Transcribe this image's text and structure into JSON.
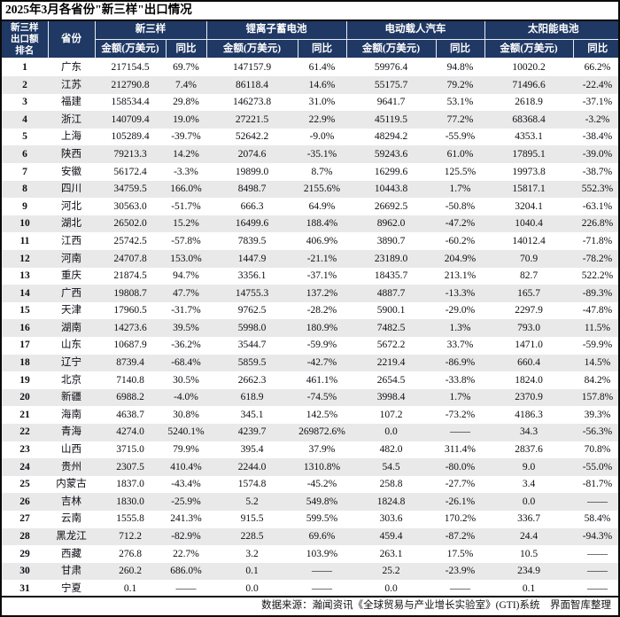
{
  "title": "2025年3月各省份\"新三样\"出口情况",
  "colors": {
    "header_bg": "#1f3864",
    "header_text": "#ffffff",
    "row_stripe": "#e9e9e9",
    "border": "#000000"
  },
  "chart_data": {
    "type": "table",
    "title": "2025年3月各省份\"新三样\"出口情况",
    "rank_header": "新三样\n出口额\n排名",
    "province_header": "省份",
    "column_groups": [
      "新三样",
      "锂离子蓄电池",
      "电动载人汽车",
      "太阳能电池"
    ],
    "amount_header": "金额(万美元)",
    "yoy_header": "同比",
    "columns": [
      "新三样出口额排名",
      "省份",
      "新三样金额(万美元)",
      "新三样同比",
      "锂离子蓄电池金额(万美元)",
      "锂离子蓄电池同比",
      "电动载人汽车金额(万美元)",
      "电动载人汽车同比",
      "太阳能电池金额(万美元)",
      "太阳能电池同比"
    ],
    "rows": [
      [
        "1",
        "广东",
        "217154.5",
        "69.7%",
        "147157.9",
        "61.4%",
        "59976.4",
        "94.8%",
        "10020.2",
        "66.2%"
      ],
      [
        "2",
        "江苏",
        "212790.8",
        "7.4%",
        "86118.4",
        "14.6%",
        "55175.7",
        "79.2%",
        "71496.6",
        "-22.4%"
      ],
      [
        "3",
        "福建",
        "158534.4",
        "29.8%",
        "146273.8",
        "31.0%",
        "9641.7",
        "53.1%",
        "2618.9",
        "-37.1%"
      ],
      [
        "4",
        "浙江",
        "140709.4",
        "19.0%",
        "27221.5",
        "22.9%",
        "45119.5",
        "77.2%",
        "68368.4",
        "-3.2%"
      ],
      [
        "5",
        "上海",
        "105289.4",
        "-39.7%",
        "52642.2",
        "-9.0%",
        "48294.2",
        "-55.9%",
        "4353.1",
        "-38.4%"
      ],
      [
        "6",
        "陕西",
        "79213.3",
        "14.2%",
        "2074.6",
        "-35.1%",
        "59243.6",
        "61.0%",
        "17895.1",
        "-39.0%"
      ],
      [
        "7",
        "安徽",
        "56172.4",
        "-3.3%",
        "19899.0",
        "8.7%",
        "16299.6",
        "125.5%",
        "19973.8",
        "-38.7%"
      ],
      [
        "8",
        "四川",
        "34759.5",
        "166.0%",
        "8498.7",
        "2155.6%",
        "10443.8",
        "1.7%",
        "15817.1",
        "552.3%"
      ],
      [
        "9",
        "河北",
        "30563.0",
        "-51.7%",
        "666.3",
        "64.9%",
        "26692.5",
        "-50.8%",
        "3204.1",
        "-63.1%"
      ],
      [
        "10",
        "湖北",
        "26502.0",
        "15.2%",
        "16499.6",
        "188.4%",
        "8962.0",
        "-47.2%",
        "1040.4",
        "226.8%"
      ],
      [
        "11",
        "江西",
        "25742.5",
        "-57.8%",
        "7839.5",
        "406.9%",
        "3890.7",
        "-60.2%",
        "14012.4",
        "-71.8%"
      ],
      [
        "12",
        "河南",
        "24707.8",
        "153.0%",
        "1447.9",
        "-21.1%",
        "23189.0",
        "204.9%",
        "70.9",
        "-78.2%"
      ],
      [
        "13",
        "重庆",
        "21874.5",
        "94.7%",
        "3356.1",
        "-37.1%",
        "18435.7",
        "213.1%",
        "82.7",
        "522.2%"
      ],
      [
        "14",
        "广西",
        "19808.7",
        "47.7%",
        "14755.3",
        "137.2%",
        "4887.7",
        "-13.3%",
        "165.7",
        "-89.3%"
      ],
      [
        "15",
        "天津",
        "17960.5",
        "-31.7%",
        "9762.5",
        "-28.2%",
        "5900.1",
        "-29.0%",
        "2297.9",
        "-47.8%"
      ],
      [
        "16",
        "湖南",
        "14273.6",
        "39.5%",
        "5998.0",
        "180.9%",
        "7482.5",
        "1.3%",
        "793.0",
        "11.5%"
      ],
      [
        "17",
        "山东",
        "10687.9",
        "-36.2%",
        "3544.7",
        "-59.9%",
        "5672.2",
        "33.7%",
        "1471.0",
        "-59.9%"
      ],
      [
        "18",
        "辽宁",
        "8739.4",
        "-68.4%",
        "5859.5",
        "-42.7%",
        "2219.4",
        "-86.9%",
        "660.4",
        "14.5%"
      ],
      [
        "19",
        "北京",
        "7140.8",
        "30.5%",
        "2662.3",
        "461.1%",
        "2654.5",
        "-33.8%",
        "1824.0",
        "84.2%"
      ],
      [
        "20",
        "新疆",
        "6988.2",
        "-4.0%",
        "618.9",
        "-74.5%",
        "3998.4",
        "1.7%",
        "2370.9",
        "157.8%"
      ],
      [
        "21",
        "海南",
        "4638.7",
        "30.8%",
        "345.1",
        "142.5%",
        "107.2",
        "-73.2%",
        "4186.3",
        "39.3%"
      ],
      [
        "22",
        "青海",
        "4274.0",
        "5240.1%",
        "4239.7",
        "269872.6%",
        "0.0",
        "——",
        "34.3",
        "-56.3%"
      ],
      [
        "23",
        "山西",
        "3715.0",
        "79.9%",
        "395.4",
        "37.9%",
        "482.0",
        "311.4%",
        "2837.6",
        "70.8%"
      ],
      [
        "24",
        "贵州",
        "2307.5",
        "410.4%",
        "2244.0",
        "1310.8%",
        "54.5",
        "-80.0%",
        "9.0",
        "-55.0%"
      ],
      [
        "25",
        "内蒙古",
        "1837.0",
        "-43.4%",
        "1574.8",
        "-45.2%",
        "258.8",
        "-27.7%",
        "3.4",
        "-81.7%"
      ],
      [
        "26",
        "吉林",
        "1830.0",
        "-25.9%",
        "5.2",
        "549.8%",
        "1824.8",
        "-26.1%",
        "0.0",
        "——"
      ],
      [
        "27",
        "云南",
        "1555.8",
        "241.3%",
        "915.5",
        "599.5%",
        "303.6",
        "170.2%",
        "336.7",
        "58.4%"
      ],
      [
        "28",
        "黑龙江",
        "712.2",
        "-82.9%",
        "228.5",
        "69.6%",
        "459.4",
        "-87.2%",
        "24.4",
        "-94.3%"
      ],
      [
        "29",
        "西藏",
        "276.8",
        "22.7%",
        "3.2",
        "103.9%",
        "263.1",
        "17.5%",
        "10.5",
        "——"
      ],
      [
        "30",
        "甘肃",
        "260.2",
        "686.0%",
        "0.1",
        "——",
        "25.2",
        "-23.9%",
        "234.9",
        "——"
      ],
      [
        "31",
        "宁夏",
        "0.1",
        "——",
        "0.0",
        "——",
        "0.0",
        "——",
        "0.1",
        "——"
      ]
    ]
  },
  "footer": {
    "source": "数据来源：瀚闻资讯《全球贸易与产业增长实验室》(GTI)系统　界面智库整理"
  }
}
